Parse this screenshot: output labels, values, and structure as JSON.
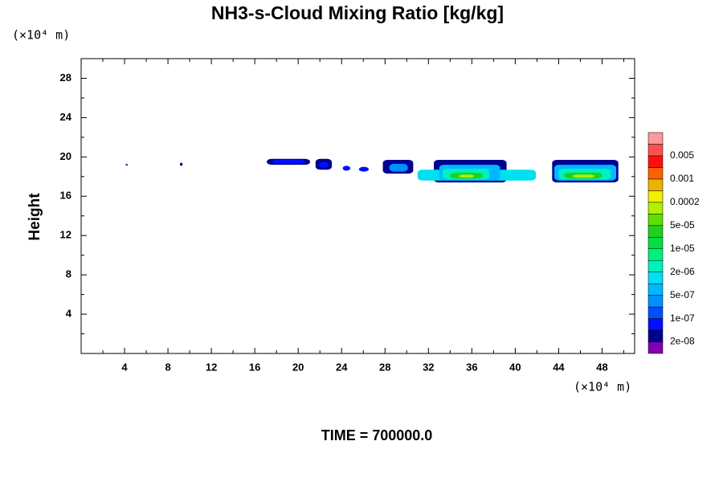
{
  "chart_data": {
    "type": "contour",
    "title": "NH3-s-Cloud Mixing Ratio [kg/kg]",
    "ylabel": "Height",
    "x_unit_label": "(×10⁴ m)",
    "y_unit_label": "(×10⁴ m)",
    "annotation": "TIME = 700000.0",
    "xlim": [
      0,
      51
    ],
    "ylim": [
      0,
      30
    ],
    "xticks": [
      4,
      8,
      12,
      16,
      20,
      24,
      28,
      32,
      36,
      40,
      44,
      48
    ],
    "xminorticks": [
      2,
      6,
      10,
      14,
      18,
      22,
      26,
      30,
      34,
      38,
      42,
      46,
      50
    ],
    "yticks": [
      4,
      8,
      12,
      16,
      20,
      24,
      28
    ],
    "yminorticks": [
      2,
      6,
      10,
      14,
      18,
      22,
      26
    ],
    "colorbar": {
      "colors": [
        "#8000b0",
        "#000090",
        "#0010ff",
        "#0050ff",
        "#0090ff",
        "#00b8ff",
        "#00e0f0",
        "#00f0c0",
        "#00f080",
        "#00e040",
        "#20d020",
        "#60e000",
        "#b0f000",
        "#f0f000",
        "#f0b000",
        "#ff6000",
        "#ff1010",
        "#ff5050",
        "#ff9898"
      ],
      "labels": [
        {
          "value": 2e-08,
          "label": "2e-08"
        },
        {
          "value": 1e-07,
          "label": "1e-07"
        },
        {
          "value": 5e-07,
          "label": "5e-07"
        },
        {
          "value": 2e-06,
          "label": "2e-06"
        },
        {
          "value": 1e-05,
          "label": "1e-05"
        },
        {
          "value": 5e-05,
          "label": "5e-05"
        },
        0.0002,
        0.001,
        0.005
      ]
    },
    "cloud_regions": [
      {
        "x": [
          4.1,
          4.3
        ],
        "y": [
          19.1,
          19.3
        ],
        "level": 0
      },
      {
        "x": [
          9.1,
          9.35
        ],
        "y": [
          19.1,
          19.4
        ],
        "level": 1
      },
      {
        "x": [
          17.1,
          21.1
        ],
        "y": [
          19.2,
          19.8
        ],
        "level": 1
      },
      {
        "x": [
          17.6,
          20.6
        ],
        "y": [
          19.3,
          19.7
        ],
        "level": 2
      },
      {
        "x": [
          21.6,
          23.1
        ],
        "y": [
          18.7,
          19.8
        ],
        "level": 1
      },
      {
        "x": [
          21.9,
          22.8
        ],
        "y": [
          18.9,
          19.5
        ],
        "level": 2
      },
      {
        "x": [
          24.1,
          24.8
        ],
        "y": [
          18.6,
          19.1
        ],
        "level": 2
      },
      {
        "x": [
          25.6,
          26.5
        ],
        "y": [
          18.5,
          19.0
        ],
        "level": 2
      },
      {
        "x": [
          27.8,
          30.6
        ],
        "y": [
          18.3,
          19.7
        ],
        "level": 1
      },
      {
        "x": [
          28.4,
          30.1
        ],
        "y": [
          18.5,
          19.3
        ],
        "level": 4
      },
      {
        "x": [
          32.5,
          39.2
        ],
        "y": [
          17.4,
          19.7
        ],
        "level": 1
      },
      {
        "x": [
          31.0,
          41.9
        ],
        "y": [
          17.6,
          18.7
        ],
        "level": 6
      },
      {
        "x": [
          33.0,
          38.6
        ],
        "y": [
          17.6,
          19.2
        ],
        "level": 5
      },
      {
        "x": [
          33.3,
          37.6
        ],
        "y": [
          17.7,
          18.8
        ],
        "level": 7
      },
      {
        "x": [
          34.0,
          37.0
        ],
        "y": [
          17.8,
          18.4
        ],
        "level": 10
      },
      {
        "x": [
          34.8,
          36.2
        ],
        "y": [
          17.9,
          18.2
        ],
        "level": 12
      },
      {
        "x": [
          43.4,
          49.5
        ],
        "y": [
          17.4,
          19.7
        ],
        "level": 1
      },
      {
        "x": [
          43.6,
          49.3
        ],
        "y": [
          17.6,
          19.2
        ],
        "level": 5
      },
      {
        "x": [
          44.0,
          48.8
        ],
        "y": [
          17.7,
          18.8
        ],
        "level": 7
      },
      {
        "x": [
          44.5,
          48.0
        ],
        "y": [
          17.8,
          18.4
        ],
        "level": 10
      },
      {
        "x": [
          45.3,
          47.3
        ],
        "y": [
          17.9,
          18.2
        ],
        "level": 12
      }
    ]
  }
}
